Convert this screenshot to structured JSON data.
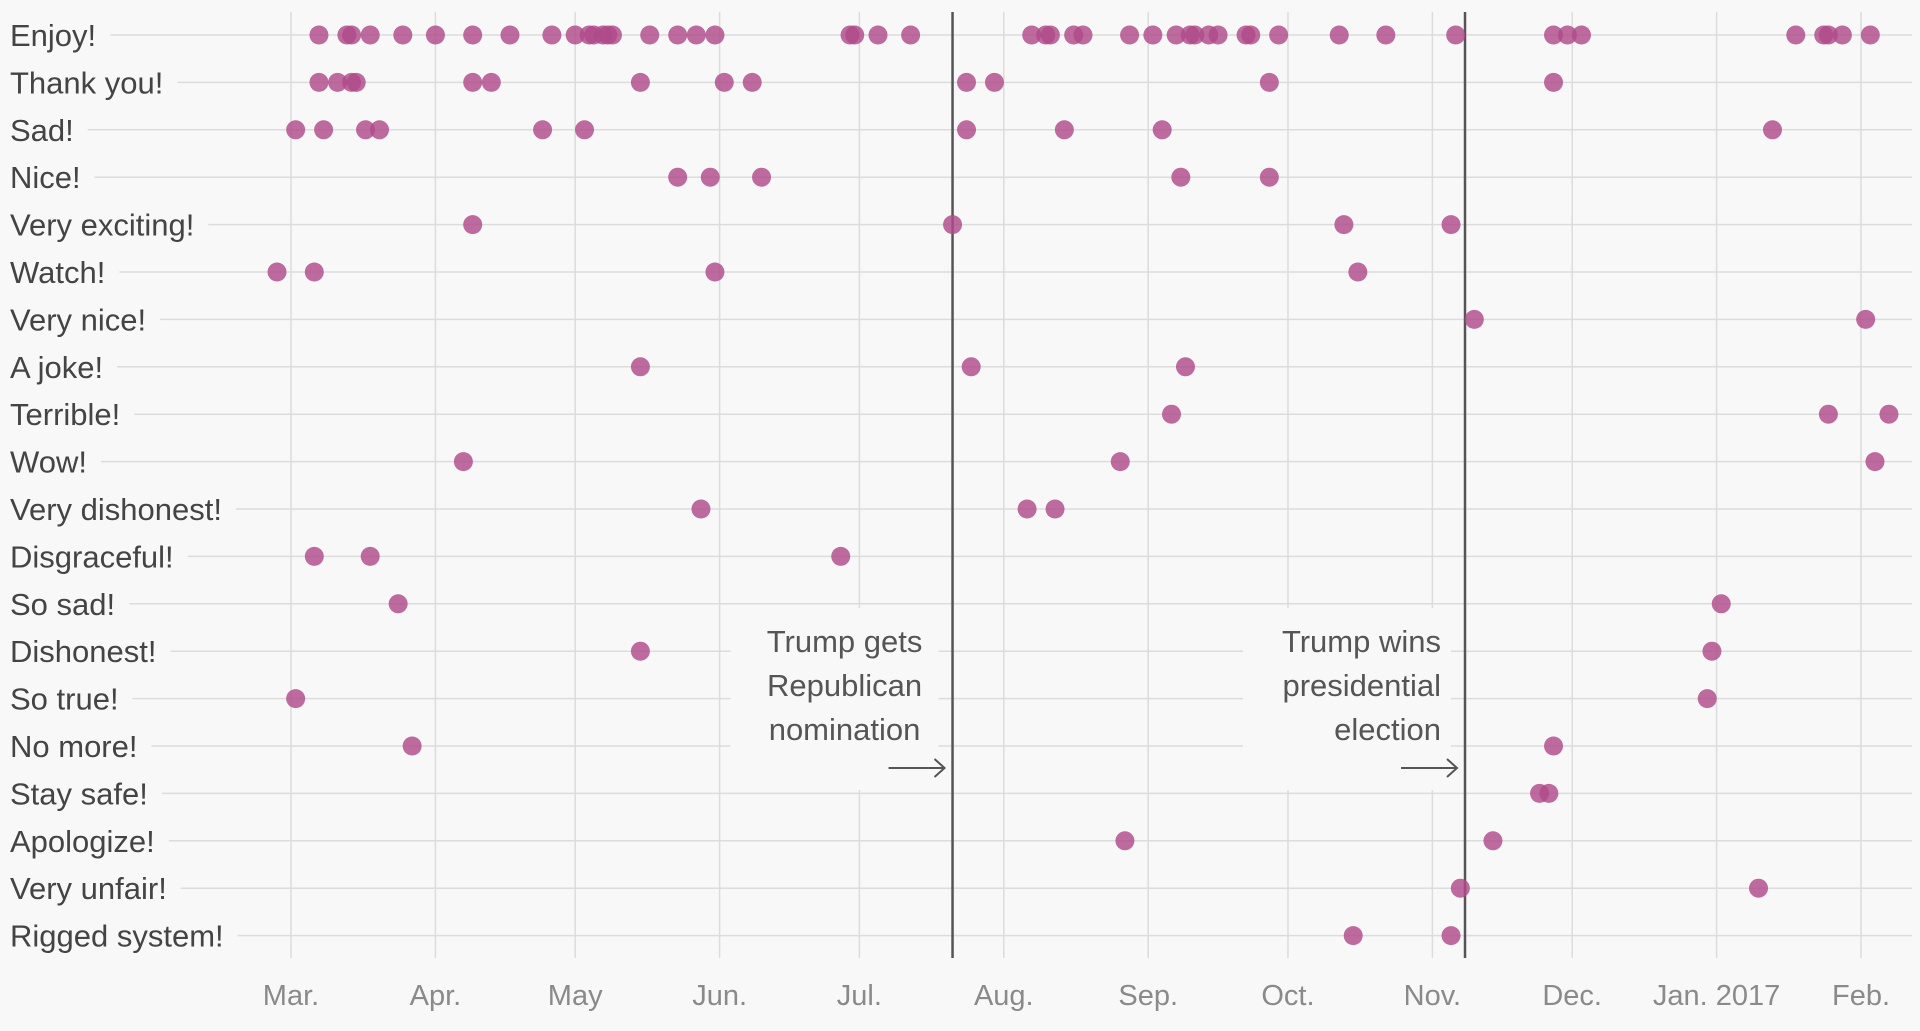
{
  "chart_data": {
    "type": "scatter",
    "title": "",
    "xlabel": "",
    "ylabel": "",
    "x_range": [
      "2016-02-22",
      "2017-02-14"
    ],
    "grid": true,
    "x_ticks": [
      {
        "date": "2016-03-01",
        "label": "Mar."
      },
      {
        "date": "2016-04-01",
        "label": "Apr."
      },
      {
        "date": "2016-05-01",
        "label": "May"
      },
      {
        "date": "2016-06-01",
        "label": "Jun."
      },
      {
        "date": "2016-07-01",
        "label": "Jul."
      },
      {
        "date": "2016-08-01",
        "label": "Aug."
      },
      {
        "date": "2016-09-01",
        "label": "Sep."
      },
      {
        "date": "2016-10-01",
        "label": "Oct."
      },
      {
        "date": "2016-11-01",
        "label": "Nov."
      },
      {
        "date": "2016-12-01",
        "label": "Dec."
      },
      {
        "date": "2017-01-01",
        "label": "Jan. 2017"
      },
      {
        "date": "2017-02-01",
        "label": "Feb."
      }
    ],
    "categories": [
      "Enjoy!",
      "Thank you!",
      "Sad!",
      "Nice!",
      "Very exciting!",
      "Watch!",
      "Very nice!",
      "A joke!",
      "Terrible!",
      "Wow!",
      "Very dishonest!",
      "Disgraceful!",
      "So sad!",
      "Dishonest!",
      "So true!",
      "No more!",
      "Stay safe!",
      "Apologize!",
      "Very unfair!",
      "Rigged system!"
    ],
    "series": [
      {
        "category": "Enjoy!",
        "dates": [
          "2016-03-07",
          "2016-03-13",
          "2016-03-14",
          "2016-03-18",
          "2016-03-25",
          "2016-04-01",
          "2016-04-09",
          "2016-04-17",
          "2016-04-26",
          "2016-05-01",
          "2016-05-04",
          "2016-05-05",
          "2016-05-07",
          "2016-05-08",
          "2016-05-09",
          "2016-05-17",
          "2016-05-23",
          "2016-05-27",
          "2016-05-31",
          "2016-06-29",
          "2016-06-30",
          "2016-07-05",
          "2016-07-12",
          "2016-08-07",
          "2016-08-10",
          "2016-08-11",
          "2016-08-16",
          "2016-08-18",
          "2016-08-28",
          "2016-09-02",
          "2016-09-07",
          "2016-09-10",
          "2016-09-11",
          "2016-09-14",
          "2016-09-16",
          "2016-09-22",
          "2016-09-23",
          "2016-09-29",
          "2016-10-12",
          "2016-10-22",
          "2016-11-06",
          "2016-11-27",
          "2016-11-30",
          "2016-12-03",
          "2017-01-18",
          "2017-01-24",
          "2017-01-25",
          "2017-01-28",
          "2017-02-03"
        ]
      },
      {
        "category": "Thank you!",
        "dates": [
          "2016-03-07",
          "2016-03-11",
          "2016-03-14",
          "2016-03-15",
          "2016-04-09",
          "2016-04-13",
          "2016-05-15",
          "2016-06-02",
          "2016-06-08",
          "2016-07-24",
          "2016-07-30",
          "2016-09-27",
          "2016-11-27"
        ]
      },
      {
        "category": "Sad!",
        "dates": [
          "2016-03-02",
          "2016-03-08",
          "2016-03-17",
          "2016-03-20",
          "2016-04-24",
          "2016-05-03",
          "2016-07-24",
          "2016-08-14",
          "2016-09-04",
          "2017-01-13"
        ]
      },
      {
        "category": "Nice!",
        "dates": [
          "2016-05-23",
          "2016-05-30",
          "2016-06-10",
          "2016-09-08",
          "2016-09-27"
        ]
      },
      {
        "category": "Very exciting!",
        "dates": [
          "2016-04-09",
          "2016-07-21",
          "2016-10-13",
          "2016-11-05"
        ]
      },
      {
        "category": "Watch!",
        "dates": [
          "2016-02-27",
          "2016-03-06",
          "2016-05-31",
          "2016-10-16"
        ]
      },
      {
        "category": "Very nice!",
        "dates": [
          "2016-11-10",
          "2017-02-02"
        ]
      },
      {
        "category": "A joke!",
        "dates": [
          "2016-05-15",
          "2016-07-25",
          "2016-09-09"
        ]
      },
      {
        "category": "Terrible!",
        "dates": [
          "2016-09-06",
          "2017-01-25",
          "2017-02-07"
        ]
      },
      {
        "category": "Wow!",
        "dates": [
          "2016-04-07",
          "2016-08-26",
          "2017-02-04"
        ]
      },
      {
        "category": "Very dishonest!",
        "dates": [
          "2016-05-28",
          "2016-08-06",
          "2016-08-12"
        ]
      },
      {
        "category": "Disgraceful!",
        "dates": [
          "2016-03-06",
          "2016-03-18",
          "2016-06-27"
        ]
      },
      {
        "category": "So sad!",
        "dates": [
          "2016-03-24",
          "2017-01-02"
        ]
      },
      {
        "category": "Dishonest!",
        "dates": [
          "2016-05-15",
          "2016-12-31"
        ]
      },
      {
        "category": "So true!",
        "dates": [
          "2016-03-02",
          "2016-12-30"
        ]
      },
      {
        "category": "No more!",
        "dates": [
          "2016-03-27",
          "2016-11-27"
        ]
      },
      {
        "category": "Stay safe!",
        "dates": [
          "2016-11-24",
          "2016-11-26"
        ]
      },
      {
        "category": "Apologize!",
        "dates": [
          "2016-08-27",
          "2016-11-14"
        ]
      },
      {
        "category": "Very unfair!",
        "dates": [
          "2016-11-07",
          "2017-01-10"
        ]
      },
      {
        "category": "Rigged system!",
        "dates": [
          "2016-10-15",
          "2016-11-05"
        ]
      }
    ],
    "annotations": [
      {
        "date": "2016-07-21",
        "lines": [
          "Trump gets",
          "Republican",
          "nomination"
        ],
        "arrow": "→"
      },
      {
        "date": "2016-11-08",
        "lines": [
          "Trump wins",
          "presidential",
          "election"
        ],
        "arrow": "→"
      }
    ],
    "colors": {
      "dot": "#b04a8a",
      "event_line": "#555555",
      "grid": "#dcdcdc",
      "row_label": "#444444",
      "tick_label": "#8a8a8a",
      "background": "#f8f8f8"
    }
  }
}
